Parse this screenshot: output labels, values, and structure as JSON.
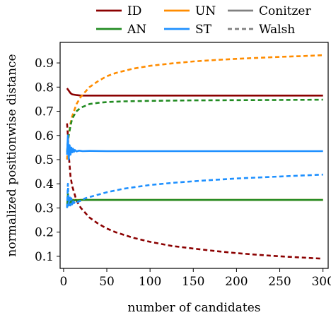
{
  "chart_data": {
    "type": "line",
    "xlabel": "number of candidates",
    "ylabel": "normalized positionwise distance",
    "xlim": [
      -4,
      306
    ],
    "ylim": [
      0.05,
      0.985
    ],
    "x_ticks": [
      0,
      50,
      100,
      150,
      200,
      250,
      300
    ],
    "y_ticks": [
      0.1,
      0.2,
      0.3,
      0.4,
      0.5,
      0.6,
      0.7,
      0.8,
      0.9
    ],
    "x_tick_labels": [
      "0",
      "50",
      "100",
      "150",
      "200",
      "250",
      "300"
    ],
    "y_tick_labels": [
      "0.1",
      "0.2",
      "0.3",
      "0.4",
      "0.5",
      "0.6",
      "0.7",
      "0.8",
      "0.9"
    ],
    "legend_placement": "top, above plot",
    "line_styles": [
      {
        "name": "Conitzer",
        "dash": "solid",
        "color": "#808080"
      },
      {
        "name": "Walsh",
        "dash": "dashed",
        "color": "#808080"
      }
    ],
    "series": [
      {
        "name": "ID",
        "color": "#8b0000",
        "style": "Conitzer",
        "x": [
          4,
          5,
          6,
          8,
          10,
          15,
          20,
          30,
          50,
          100,
          150,
          200,
          250,
          300
        ],
        "values": [
          0.795,
          0.79,
          0.785,
          0.775,
          0.77,
          0.767,
          0.765,
          0.765,
          0.765,
          0.765,
          0.765,
          0.765,
          0.765,
          0.765
        ]
      },
      {
        "name": "ID",
        "color": "#8b0000",
        "style": "Walsh",
        "x": [
          4,
          5,
          6,
          8,
          10,
          15,
          20,
          30,
          40,
          50,
          60,
          80,
          100,
          125,
          150,
          175,
          200,
          225,
          250,
          275,
          300
        ],
        "values": [
          0.65,
          0.6,
          0.52,
          0.43,
          0.39,
          0.33,
          0.3,
          0.26,
          0.235,
          0.215,
          0.2,
          0.177,
          0.16,
          0.143,
          0.132,
          0.122,
          0.113,
          0.106,
          0.1,
          0.095,
          0.09
        ]
      },
      {
        "name": "UN",
        "color": "#ff8c00",
        "style": "Conitzer",
        "x": [
          4,
          5,
          6,
          8,
          10,
          15,
          20,
          30,
          50,
          100,
          150,
          200,
          250,
          300
        ],
        "values": [
          0.33,
          0.33,
          0.33,
          0.332,
          0.333,
          0.333,
          0.333,
          0.333,
          0.333,
          0.333,
          0.333,
          0.333,
          0.333,
          0.333
        ]
      },
      {
        "name": "UN",
        "color": "#ff8c00",
        "style": "Walsh",
        "x": [
          4,
          5,
          6,
          8,
          10,
          15,
          20,
          30,
          40,
          50,
          60,
          80,
          100,
          125,
          150,
          175,
          200,
          225,
          250,
          275,
          300
        ],
        "values": [
          0.5,
          0.56,
          0.6,
          0.65,
          0.68,
          0.73,
          0.76,
          0.8,
          0.825,
          0.845,
          0.858,
          0.876,
          0.888,
          0.898,
          0.906,
          0.912,
          0.917,
          0.921,
          0.925,
          0.928,
          0.932
        ]
      },
      {
        "name": "AN",
        "color": "#228b22",
        "style": "Conitzer",
        "x": [
          4,
          5,
          6,
          7,
          8,
          9,
          10,
          11,
          12,
          14,
          16,
          20,
          30,
          50,
          100,
          150,
          200,
          250,
          300
        ],
        "values": [
          0.3,
          0.36,
          0.31,
          0.34,
          0.32,
          0.335,
          0.325,
          0.333,
          0.33,
          0.333,
          0.332,
          0.333,
          0.333,
          0.333,
          0.333,
          0.333,
          0.333,
          0.333,
          0.333
        ]
      },
      {
        "name": "AN",
        "color": "#228b22",
        "style": "Walsh",
        "x": [
          4,
          5,
          6,
          8,
          10,
          15,
          20,
          30,
          40,
          50,
          70,
          100,
          150,
          200,
          250,
          300
        ],
        "values": [
          0.53,
          0.58,
          0.6,
          0.64,
          0.67,
          0.7,
          0.715,
          0.73,
          0.735,
          0.738,
          0.741,
          0.743,
          0.745,
          0.746,
          0.747,
          0.748
        ]
      },
      {
        "name": "ST",
        "color": "#1e90ff",
        "style": "Conitzer",
        "x": [
          4,
          5,
          6,
          7,
          8,
          9,
          10,
          11,
          12,
          13,
          15,
          18,
          22,
          30,
          50,
          100,
          150,
          200,
          250,
          300
        ],
        "values": [
          0.52,
          0.6,
          0.5,
          0.56,
          0.52,
          0.55,
          0.53,
          0.545,
          0.532,
          0.54,
          0.534,
          0.537,
          0.535,
          0.536,
          0.535,
          0.535,
          0.535,
          0.535,
          0.535,
          0.535
        ]
      },
      {
        "name": "ST",
        "color": "#1e90ff",
        "style": "Walsh",
        "x": [
          4,
          5,
          6,
          7,
          8,
          9,
          10,
          11,
          12,
          14,
          16,
          20,
          25,
          30,
          40,
          50,
          70,
          100,
          130,
          160,
          200,
          250,
          300
        ],
        "values": [
          0.3,
          0.4,
          0.31,
          0.35,
          0.31,
          0.34,
          0.315,
          0.335,
          0.32,
          0.33,
          0.325,
          0.33,
          0.34,
          0.345,
          0.355,
          0.365,
          0.38,
          0.395,
          0.405,
          0.413,
          0.422,
          0.43,
          0.438
        ]
      }
    ]
  },
  "legend": {
    "row1": [
      {
        "label": "ID",
        "color": "#8b0000",
        "dash": "solid"
      },
      {
        "label": "UN",
        "color": "#ff8c00",
        "dash": "solid"
      },
      {
        "label": "Conitzer",
        "color": "#808080",
        "dash": "solid"
      }
    ],
    "row2": [
      {
        "label": "AN",
        "color": "#228b22",
        "dash": "solid"
      },
      {
        "label": "ST",
        "color": "#1e90ff",
        "dash": "solid"
      },
      {
        "label": "Walsh",
        "color": "#808080",
        "dash": "dashed"
      }
    ]
  }
}
